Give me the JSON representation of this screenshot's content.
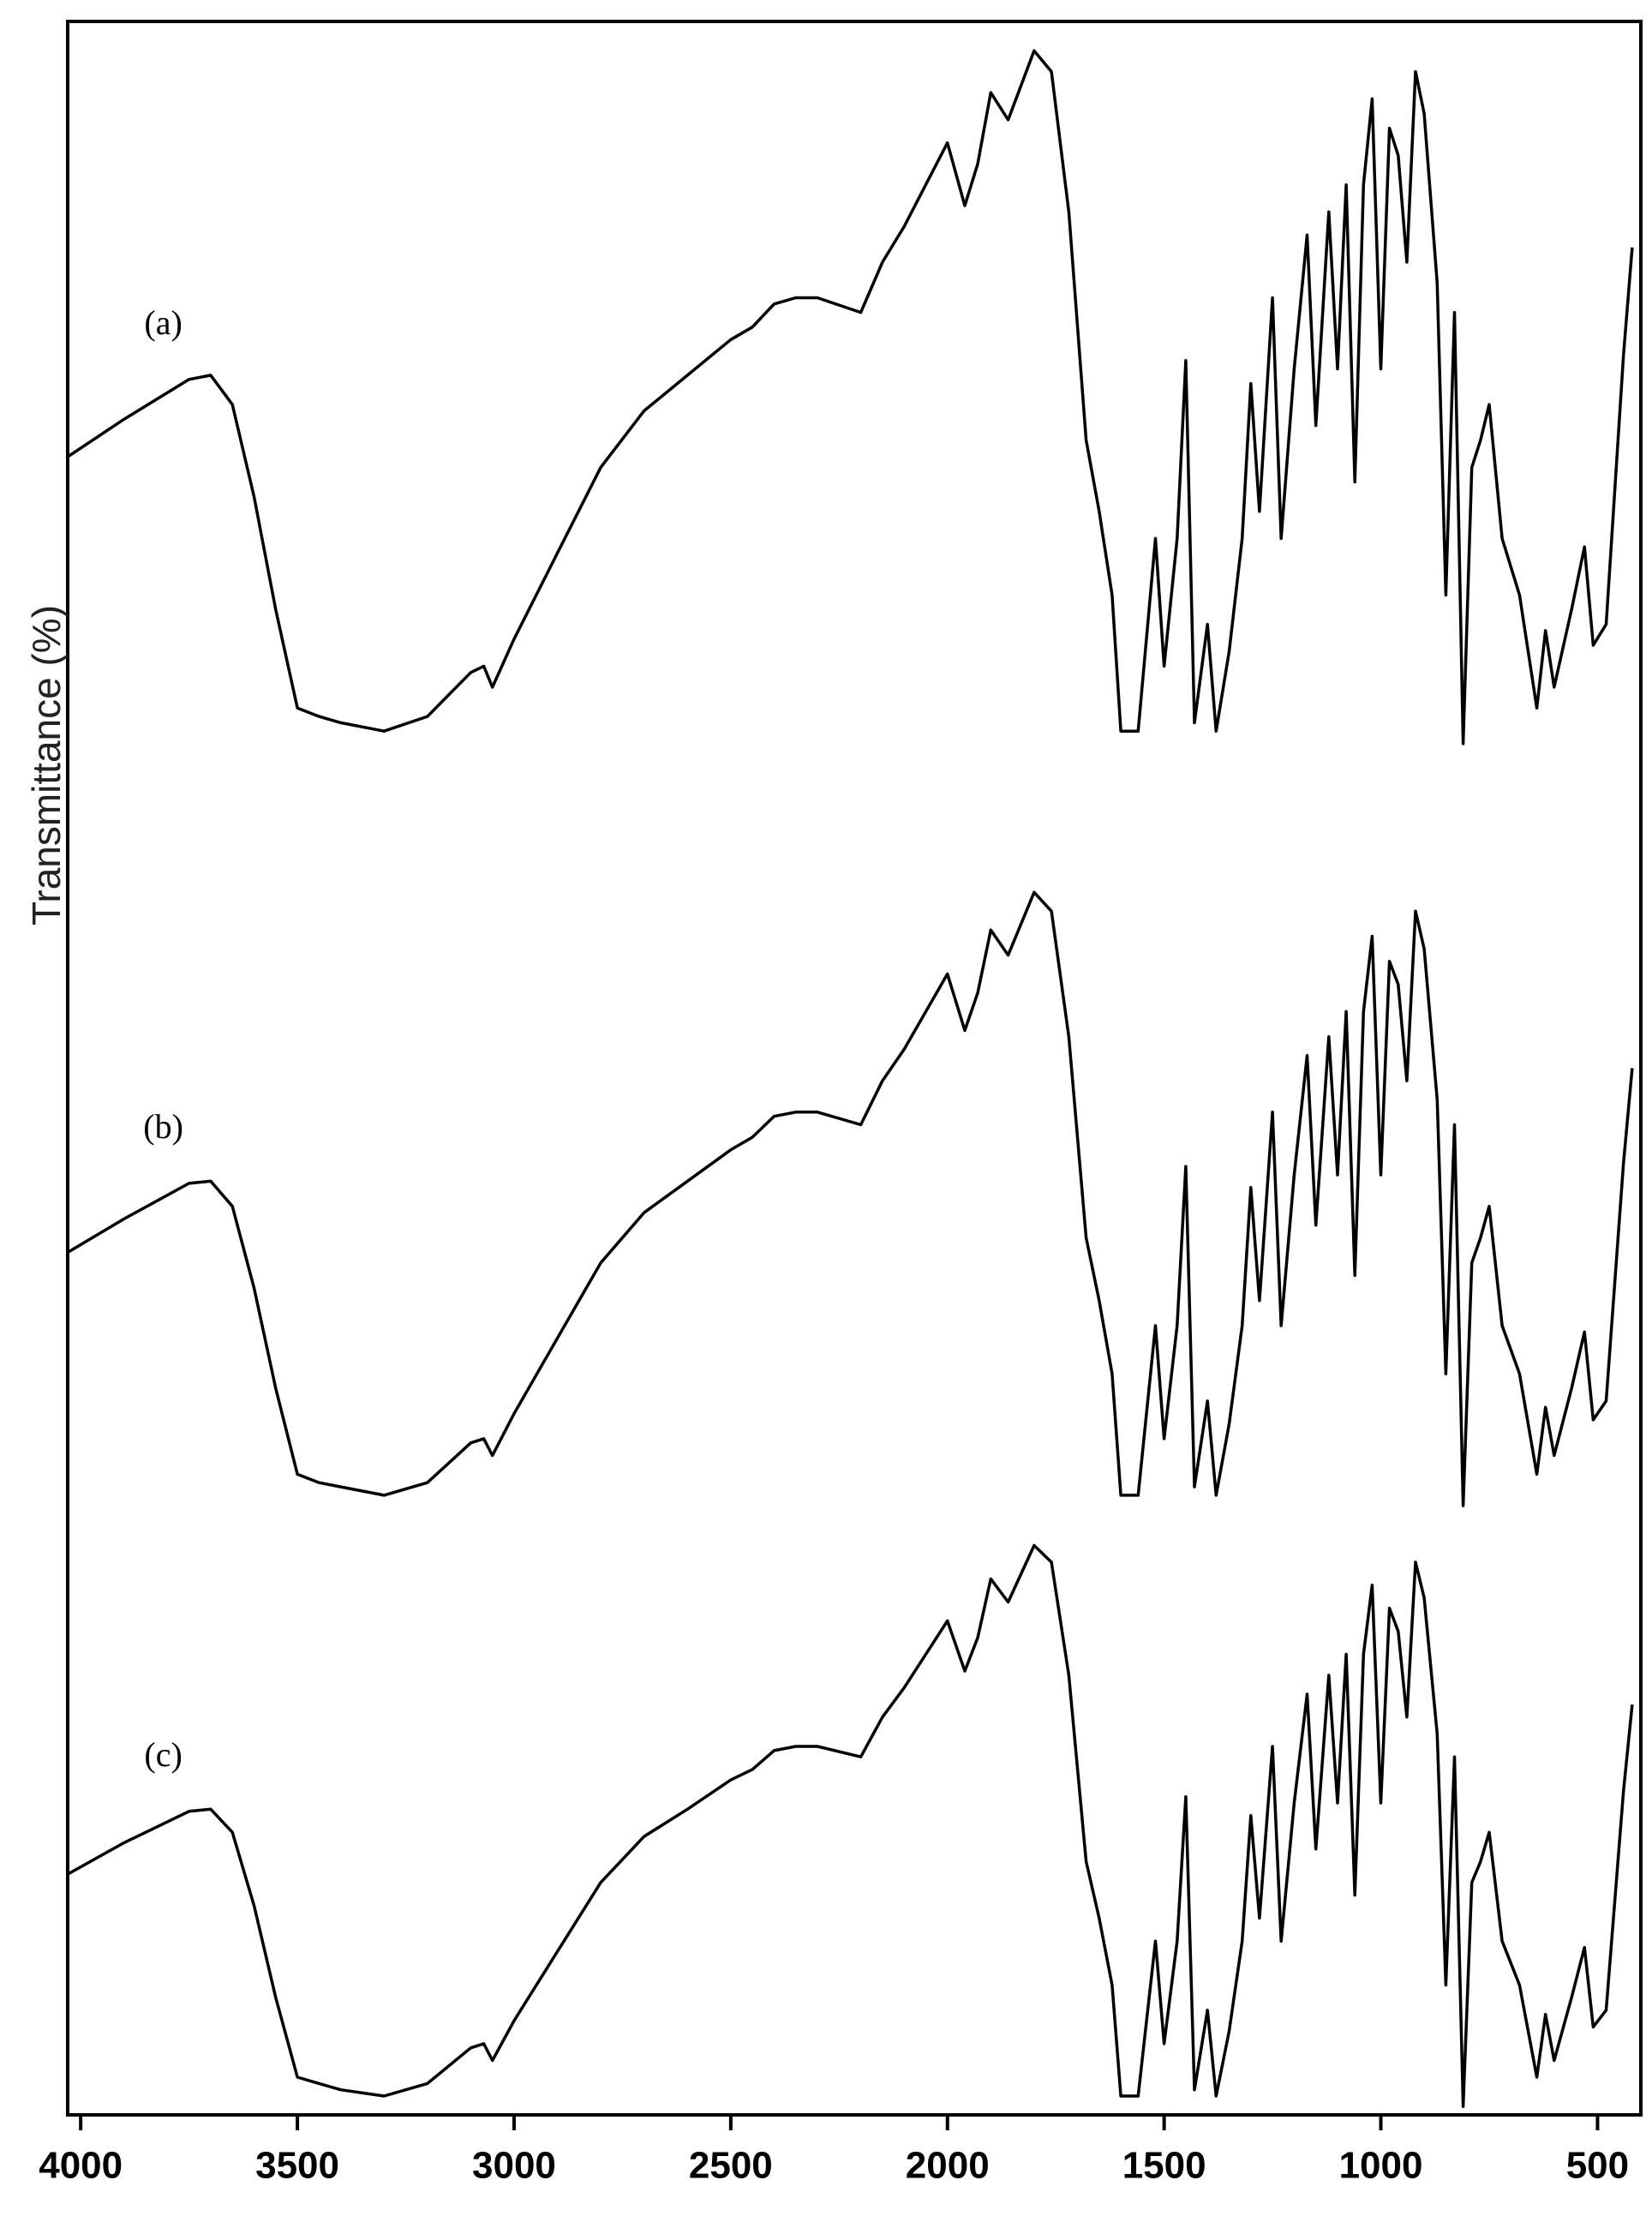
{
  "chart_data": {
    "type": "line",
    "y_label": "Transmittance (%)",
    "xlim": [
      4030,
      400
    ],
    "ylim": [
      0,
      100
    ],
    "xticks": [
      4000,
      3500,
      3000,
      2500,
      2000,
      1500,
      1000,
      500
    ],
    "x": [
      4030,
      3900,
      3750,
      3700,
      3650,
      3600,
      3550,
      3500,
      3450,
      3400,
      3300,
      3200,
      3100,
      3070,
      3050,
      3000,
      2900,
      2800,
      2700,
      2600,
      2500,
      2450,
      2400,
      2350,
      2300,
      2200,
      2150,
      2100,
      2000,
      1960,
      1930,
      1900,
      1860,
      1800,
      1760,
      1720,
      1680,
      1650,
      1620,
      1600,
      1560,
      1520,
      1500,
      1470,
      1450,
      1430,
      1400,
      1380,
      1350,
      1320,
      1300,
      1280,
      1250,
      1230,
      1200,
      1170,
      1150,
      1120,
      1100,
      1080,
      1060,
      1040,
      1020,
      1000,
      980,
      960,
      940,
      920,
      900,
      870,
      850,
      830,
      810,
      790,
      770,
      750,
      720,
      680,
      640,
      620,
      600,
      560,
      530,
      510,
      480,
      440,
      420
    ],
    "series": [
      {
        "name": "(a)",
        "color": "#000000",
        "values": [
          79.2,
          81.0,
          82.9,
          83.1,
          81.7,
          77.3,
          71.9,
          67.2,
          66.8,
          66.5,
          66.1,
          66.8,
          68.9,
          69.2,
          68.2,
          70.5,
          74.6,
          78.7,
          81.4,
          83.1,
          84.8,
          85.4,
          86.5,
          86.8,
          86.8,
          86.1,
          88.5,
          90.2,
          94.2,
          91.2,
          93.2,
          96.6,
          95.3,
          98.6,
          97.6,
          90.9,
          80.0,
          76.6,
          72.6,
          66.1,
          66.1,
          75.3,
          69.2,
          75.3,
          83.8,
          66.5,
          71.2,
          66.1,
          69.9,
          75.3,
          82.7,
          76.6,
          86.8,
          75.3,
          83.4,
          89.8,
          80.7,
          90.9,
          83.4,
          92.2,
          78.0,
          92.2,
          96.3,
          83.4,
          94.9,
          93.6,
          88.5,
          97.6,
          95.6,
          87.5,
          72.6,
          86.1,
          65.5,
          78.7,
          80.0,
          81.7,
          75.3,
          72.6,
          67.2,
          70.9,
          68.2,
          71.9,
          74.9,
          70.2,
          71.2,
          84.1,
          89.2
        ]
      },
      {
        "name": "(b)",
        "color": "#000000",
        "values": [
          41.2,
          42.8,
          44.5,
          44.6,
          43.4,
          39.5,
          34.7,
          30.6,
          30.2,
          30.0,
          29.6,
          30.2,
          32.1,
          32.3,
          31.5,
          33.5,
          37.1,
          40.7,
          43.1,
          44.6,
          46.1,
          46.7,
          47.7,
          47.9,
          47.9,
          47.3,
          49.4,
          50.9,
          54.5,
          51.8,
          53.6,
          56.6,
          55.4,
          58.4,
          57.5,
          51.5,
          41.9,
          38.9,
          35.4,
          29.6,
          29.6,
          37.7,
          32.3,
          37.7,
          45.3,
          30.0,
          34.1,
          29.6,
          33.0,
          37.7,
          44.3,
          38.9,
          47.9,
          37.7,
          44.9,
          50.6,
          42.5,
          51.5,
          44.9,
          52.7,
          40.1,
          52.7,
          56.3,
          44.9,
          55.1,
          54.0,
          49.4,
          57.5,
          55.7,
          48.5,
          35.4,
          47.3,
          29.1,
          40.7,
          41.9,
          43.4,
          37.7,
          35.4,
          30.6,
          33.8,
          31.5,
          34.7,
          37.4,
          33.2,
          34.1,
          45.5,
          50.0
        ]
      },
      {
        "name": "(c)",
        "color": "#000000",
        "values": [
          11.5,
          13.0,
          14.5,
          14.6,
          13.5,
          10.0,
          5.6,
          1.8,
          1.5,
          1.2,
          0.9,
          1.5,
          3.2,
          3.4,
          2.6,
          4.5,
          7.8,
          11.1,
          13.3,
          14.6,
          16.0,
          16.5,
          17.4,
          17.6,
          17.6,
          17.1,
          19.0,
          20.4,
          23.6,
          21.2,
          22.8,
          25.6,
          24.5,
          27.2,
          26.4,
          21.0,
          12.1,
          9.4,
          6.2,
          0.9,
          0.9,
          8.3,
          3.4,
          8.3,
          15.2,
          1.2,
          5.0,
          0.9,
          4.0,
          8.3,
          14.3,
          9.4,
          17.6,
          8.3,
          14.9,
          20.1,
          12.7,
          21.0,
          14.9,
          22.0,
          10.5,
          22.0,
          25.3,
          14.9,
          24.2,
          23.1,
          19.0,
          26.4,
          24.7,
          18.2,
          6.2,
          17.1,
          0.4,
          11.1,
          12.1,
          13.5,
          8.3,
          6.2,
          1.8,
          4.8,
          2.6,
          5.6,
          8.0,
          4.2,
          5.0,
          15.5,
          19.6
        ]
      }
    ]
  }
}
